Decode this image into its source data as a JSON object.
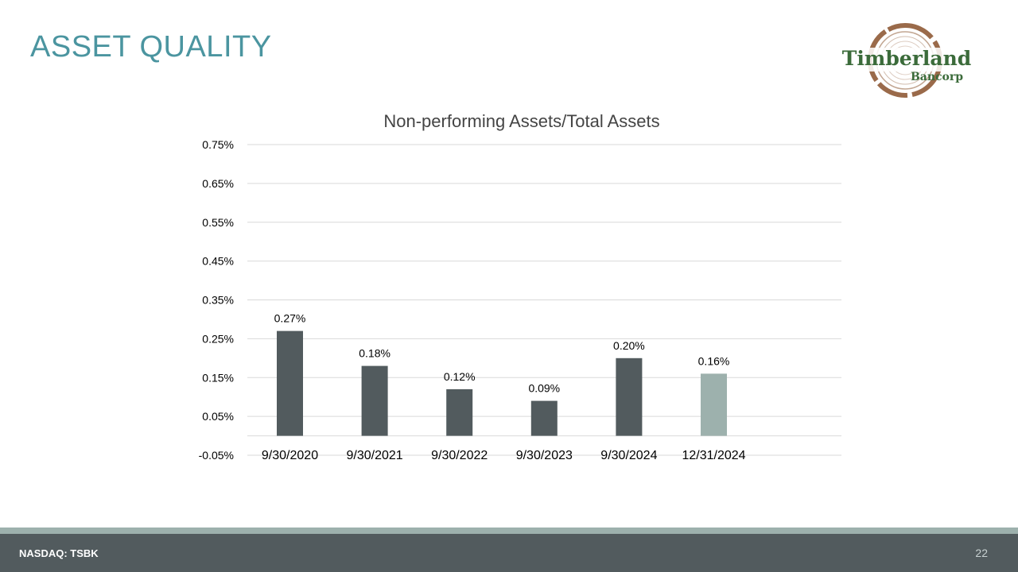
{
  "slide": {
    "title": "ASSET QUALITY",
    "page_number": "22"
  },
  "logo": {
    "name": "Timberland",
    "sub": "Bancorp",
    "text_color": "#3b6b3a",
    "ring_color": "#9a6a4a"
  },
  "footer": {
    "ticker": "NASDAQ: TSBK",
    "bar_color": "#525b5e",
    "stripe_color": "#9db1ad"
  },
  "chart_data": {
    "type": "bar",
    "title": "Non-performing Assets/Total Assets",
    "categories": [
      "9/30/2020",
      "9/30/2021",
      "9/30/2022",
      "9/30/2023",
      "9/30/2024",
      "12/31/2024"
    ],
    "values": [
      0.27,
      0.18,
      0.12,
      0.09,
      0.2,
      0.16
    ],
    "value_labels": [
      "0.27%",
      "0.18%",
      "0.12%",
      "0.09%",
      "0.20%",
      "0.16%"
    ],
    "bar_colors": [
      "#525b5e",
      "#525b5e",
      "#525b5e",
      "#525b5e",
      "#525b5e",
      "#9db1ad"
    ],
    "ylim": [
      -0.05,
      0.75
    ],
    "yticks": [
      -0.05,
      0.05,
      0.15,
      0.25,
      0.35,
      0.45,
      0.55,
      0.65,
      0.75
    ],
    "ytick_labels": [
      "-0.05%",
      "0.05%",
      "0.15%",
      "0.25%",
      "0.35%",
      "0.45%",
      "0.55%",
      "0.65%",
      "0.75%"
    ],
    "xlabel": "",
    "ylabel": "",
    "grid": true,
    "legend": "none"
  }
}
